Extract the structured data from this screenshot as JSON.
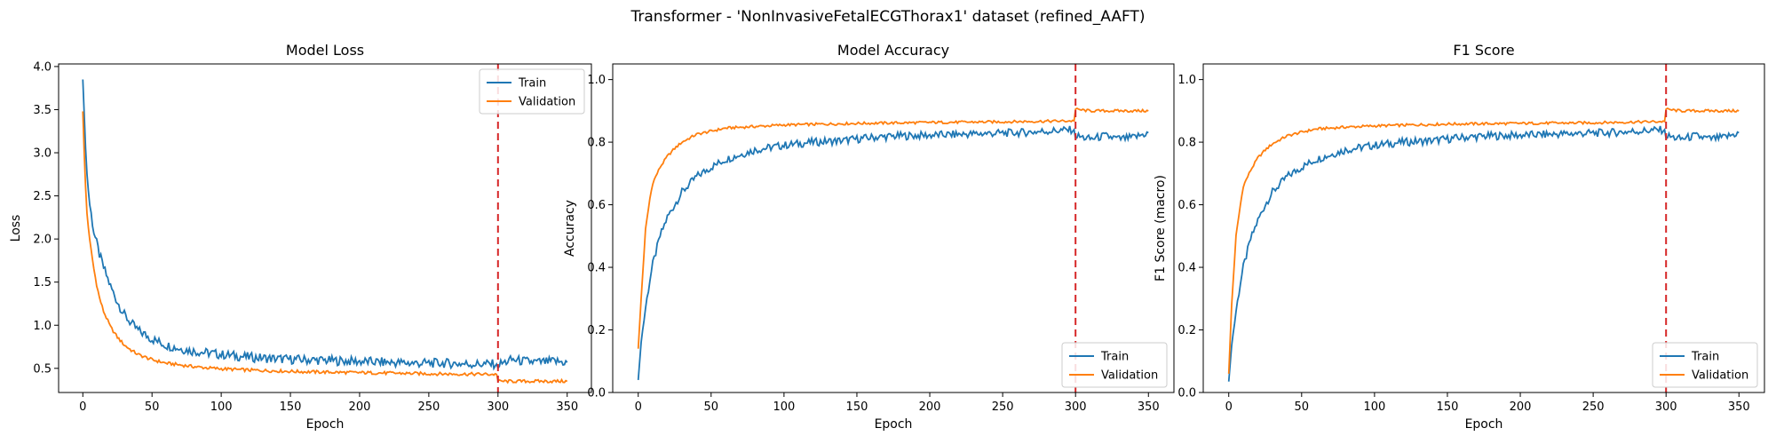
{
  "figure": {
    "suptitle": "Transformer - 'NonInvasiveFetalECGThorax1' dataset (refined_AAFT)"
  },
  "colors": {
    "train": "#1f77b4",
    "validation": "#ff7f0e",
    "marker": "#d62728"
  },
  "chart_data": [
    {
      "type": "line",
      "title": "Model Loss",
      "xlabel": "Epoch",
      "ylabel": "Loss",
      "xlim": [
        -17.5,
        367.5
      ],
      "ylim": [
        0.22,
        4.03
      ],
      "xticks": [
        0,
        50,
        100,
        150,
        200,
        250,
        300,
        350
      ],
      "yticks": [
        0.5,
        1.0,
        1.5,
        2.0,
        2.5,
        3.0,
        3.5,
        4.0
      ],
      "ytick_labels": [
        "0.5",
        "1.0",
        "1.5",
        "2.0",
        "2.5",
        "3.0",
        "3.5",
        "4.0"
      ],
      "vline_x": 300,
      "grid": false,
      "legend": "top-right",
      "series": [
        {
          "name": "Train",
          "x": [
            0,
            1,
            2,
            3,
            5,
            8,
            10,
            12,
            15,
            20,
            25,
            30,
            35,
            40,
            50,
            60,
            70,
            80,
            90,
            100,
            120,
            140,
            160,
            180,
            200,
            220,
            240,
            260,
            280,
            299,
            300,
            310,
            320,
            330,
            340,
            350
          ],
          "y": [
            3.85,
            3.45,
            3.05,
            2.75,
            2.4,
            2.08,
            1.95,
            1.82,
            1.67,
            1.45,
            1.27,
            1.12,
            1.02,
            0.94,
            0.84,
            0.77,
            0.73,
            0.7,
            0.68,
            0.66,
            0.63,
            0.61,
            0.6,
            0.59,
            0.58,
            0.57,
            0.56,
            0.56,
            0.55,
            0.55,
            0.54,
            0.6,
            0.58,
            0.57,
            0.58,
            0.57
          ]
        },
        {
          "name": "Validation",
          "x": [
            0,
            1,
            2,
            3,
            5,
            8,
            10,
            12,
            15,
            20,
            25,
            30,
            35,
            40,
            50,
            60,
            70,
            80,
            90,
            100,
            120,
            140,
            160,
            180,
            200,
            220,
            240,
            260,
            280,
            299,
            300,
            350
          ],
          "y": [
            3.48,
            3.0,
            2.6,
            2.3,
            1.98,
            1.65,
            1.47,
            1.32,
            1.16,
            0.98,
            0.86,
            0.77,
            0.71,
            0.66,
            0.6,
            0.56,
            0.54,
            0.52,
            0.505,
            0.495,
            0.48,
            0.47,
            0.46,
            0.455,
            0.45,
            0.445,
            0.44,
            0.435,
            0.433,
            0.43,
            0.35,
            0.35
          ]
        }
      ]
    },
    {
      "type": "line",
      "title": "Model Accuracy",
      "xlabel": "Epoch",
      "ylabel": "Accuracy",
      "xlim": [
        -17.5,
        367.5
      ],
      "ylim": [
        0,
        1.05
      ],
      "xticks": [
        0,
        50,
        100,
        150,
        200,
        250,
        300,
        350
      ],
      "yticks": [
        0,
        0.2,
        0.4,
        0.6,
        0.8,
        1.0
      ],
      "ytick_labels": [
        "0.0",
        "0.2",
        "0.4",
        "0.6",
        "0.8",
        "1.0"
      ],
      "vline_x": 300,
      "grid": false,
      "legend": "bottom-right",
      "series": [
        {
          "name": "Train",
          "x": [
            0,
            2,
            5,
            8,
            10,
            15,
            20,
            25,
            30,
            40,
            50,
            60,
            70,
            80,
            100,
            120,
            140,
            160,
            180,
            200,
            220,
            240,
            260,
            280,
            299,
            300,
            310,
            320,
            330,
            340,
            350
          ],
          "y": [
            0.04,
            0.16,
            0.27,
            0.36,
            0.41,
            0.5,
            0.56,
            0.6,
            0.64,
            0.69,
            0.72,
            0.745,
            0.76,
            0.775,
            0.79,
            0.8,
            0.805,
            0.815,
            0.82,
            0.822,
            0.825,
            0.828,
            0.83,
            0.835,
            0.84,
            0.82,
            0.81,
            0.82,
            0.81,
            0.815,
            0.83
          ]
        },
        {
          "name": "Validation",
          "x": [
            0,
            2,
            5,
            8,
            10,
            15,
            20,
            25,
            30,
            40,
            50,
            60,
            80,
            100,
            150,
            200,
            250,
            299,
            300,
            310,
            350
          ],
          "y": [
            0.14,
            0.3,
            0.52,
            0.62,
            0.67,
            0.72,
            0.755,
            0.78,
            0.8,
            0.825,
            0.835,
            0.845,
            0.85,
            0.855,
            0.86,
            0.863,
            0.865,
            0.868,
            0.905,
            0.9,
            0.9
          ]
        }
      ]
    },
    {
      "type": "line",
      "title": "F1 Score",
      "xlabel": "Epoch",
      "ylabel": "F1 Score (macro)",
      "xlim": [
        -17.5,
        367.5
      ],
      "ylim": [
        0,
        1.05
      ],
      "xticks": [
        0,
        50,
        100,
        150,
        200,
        250,
        300,
        350
      ],
      "yticks": [
        0,
        0.2,
        0.4,
        0.6,
        0.8,
        1.0
      ],
      "ytick_labels": [
        "0.0",
        "0.2",
        "0.4",
        "0.6",
        "0.8",
        "1.0"
      ],
      "vline_x": 300,
      "grid": false,
      "legend": "bottom-right",
      "series": [
        {
          "name": "Train",
          "x": [
            0,
            2,
            5,
            8,
            10,
            15,
            20,
            25,
            30,
            40,
            50,
            60,
            70,
            80,
            100,
            120,
            140,
            160,
            180,
            200,
            220,
            240,
            260,
            280,
            299,
            300,
            310,
            320,
            330,
            340,
            350
          ],
          "y": [
            0.035,
            0.15,
            0.26,
            0.35,
            0.4,
            0.49,
            0.55,
            0.6,
            0.64,
            0.69,
            0.72,
            0.745,
            0.76,
            0.775,
            0.79,
            0.8,
            0.805,
            0.815,
            0.82,
            0.822,
            0.825,
            0.828,
            0.83,
            0.835,
            0.84,
            0.82,
            0.81,
            0.82,
            0.81,
            0.815,
            0.83
          ]
        },
        {
          "name": "Validation",
          "x": [
            0,
            2,
            5,
            8,
            10,
            15,
            20,
            25,
            30,
            40,
            50,
            60,
            80,
            100,
            150,
            200,
            250,
            299,
            300,
            310,
            350
          ],
          "y": [
            0.06,
            0.28,
            0.5,
            0.6,
            0.66,
            0.71,
            0.75,
            0.775,
            0.795,
            0.82,
            0.832,
            0.842,
            0.848,
            0.852,
            0.858,
            0.86,
            0.862,
            0.866,
            0.905,
            0.9,
            0.9
          ]
        }
      ]
    }
  ]
}
